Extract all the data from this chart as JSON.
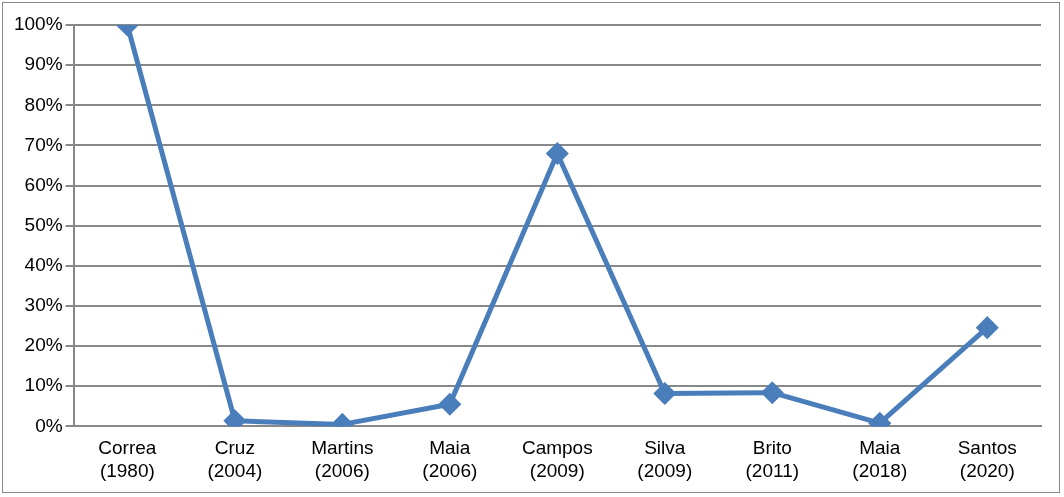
{
  "chart_data": {
    "type": "line",
    "categories": [
      "Correa (1980)",
      "Cruz (2004)",
      "Martins (2006)",
      "Maia (2006)",
      "Campos (2009)",
      "Silva (2009)",
      "Brito (2011)",
      "Maia (2018)",
      "Santos (2020)"
    ],
    "series": [
      {
        "color": "#4a7ebb",
        "values": [
          100,
          1.4,
          0.5,
          5.5,
          68,
          8.2,
          8.4,
          0.8,
          24.6
        ]
      }
    ],
    "ylim": [
      0,
      100
    ],
    "yticks": [
      {
        "value": 0,
        "label": "0%"
      },
      {
        "value": 10,
        "label": "10%"
      },
      {
        "value": 20,
        "label": "20%"
      },
      {
        "value": 30,
        "label": "30%"
      },
      {
        "value": 40,
        "label": "40%"
      },
      {
        "value": 50,
        "label": "50%"
      },
      {
        "value": 60,
        "label": "60%"
      },
      {
        "value": 70,
        "label": "70%"
      },
      {
        "value": 80,
        "label": "80%"
      },
      {
        "value": 90,
        "label": "90%"
      },
      {
        "value": 100,
        "label": "100%"
      }
    ],
    "grid": "y",
    "legend": false,
    "marker": "diamond",
    "line_style": "solid"
  }
}
